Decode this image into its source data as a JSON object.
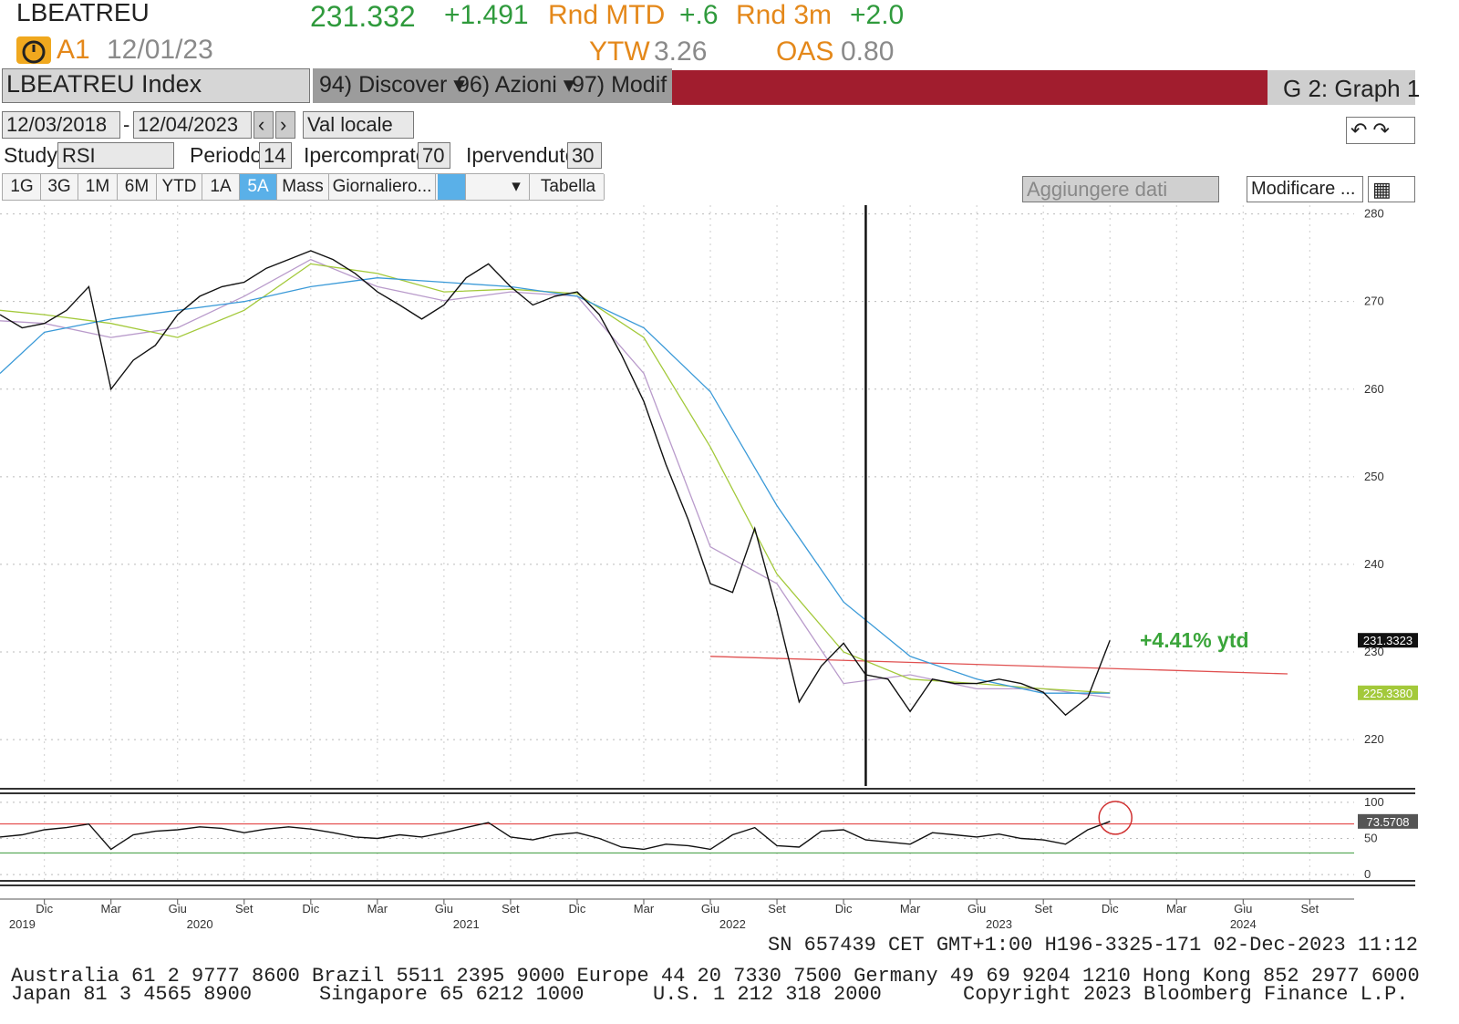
{
  "header": {
    "ticker": "LBEATREU",
    "price": "231.332",
    "change": "+1.491",
    "rnd_mtd_label": "Rnd MTD",
    "rnd_mtd": "+.6",
    "rnd_3m_label": "Rnd 3m",
    "rnd_3m": "+2.0",
    "rating": "A1",
    "date": "12/01/23",
    "ytw_label": "YTW",
    "ytw": "3.26",
    "oas_label": "OAS",
    "oas": "0.80"
  },
  "toolbar": {
    "security": "LBEATREU Index",
    "menus": [
      "94) Discover",
      "96) Azioni",
      "97) Modif"
    ],
    "graph": "G 2: Graph 1",
    "start_date": "12/03/2018",
    "date_separator": "-",
    "end_date": "12/04/2023",
    "currency": "Val locale",
    "study_label": "Study",
    "study": "RSI",
    "period_label": "Periodo",
    "period": "14",
    "overbought_label": "Ipercomprato",
    "oversold_label": "Ipervenduto",
    "ranges": [
      "1G",
      "3G",
      "1M",
      "6M",
      "YTD",
      "1A",
      "5A",
      "Mass"
    ],
    "frequency": "Giornaliero...",
    "table": "Tabella",
    "add_data": "Aggiungere dati",
    "edit": "Modificare ..."
  },
  "chart_data": [
    {
      "type": "line",
      "xlim": [
        "2019-10",
        "2024-11"
      ],
      "xticks": [
        {
          "value": "2019-12",
          "label": "Dic"
        },
        {
          "value": "2020-03",
          "label": "Mar"
        },
        {
          "value": "2020-06",
          "label": "Giu"
        },
        {
          "value": "2020-09",
          "label": "Set"
        },
        {
          "value": "2020-12",
          "label": "Dic"
        },
        {
          "value": "2021-03",
          "label": "Mar"
        },
        {
          "value": "2021-06",
          "label": "Giu"
        },
        {
          "value": "2021-09",
          "label": "Set"
        },
        {
          "value": "2021-12",
          "label": "Dic"
        },
        {
          "value": "2022-03",
          "label": "Mar"
        },
        {
          "value": "2022-06",
          "label": "Giu"
        },
        {
          "value": "2022-09",
          "label": "Set"
        },
        {
          "value": "2022-12",
          "label": "Dic"
        },
        {
          "value": "2023-03",
          "label": "Mar"
        },
        {
          "value": "2023-06",
          "label": "Giu"
        },
        {
          "value": "2023-09",
          "label": "Set"
        },
        {
          "value": "2023-12",
          "label": "Dic"
        },
        {
          "value": "2024-03",
          "label": "Mar"
        },
        {
          "value": "2024-06",
          "label": "Giu"
        },
        {
          "value": "2024-09",
          "label": "Set"
        }
      ],
      "year_labels": [
        {
          "value": "2019-11",
          "label": "2019"
        },
        {
          "value": "2020-07",
          "label": "2020"
        },
        {
          "value": "2021-07",
          "label": "2021"
        },
        {
          "value": "2022-07",
          "label": "2022"
        },
        {
          "value": "2023-07",
          "label": "2023"
        },
        {
          "value": "2024-06",
          "label": "2024"
        }
      ],
      "ylim": [
        214.7,
        281
      ],
      "yticks": [
        220,
        230,
        240,
        250,
        260,
        270,
        280
      ],
      "grid": true,
      "x": [
        "2019-10",
        "2019-11",
        "2019-12",
        "2020-01",
        "2020-02",
        "2020-03",
        "2020-04",
        "2020-05",
        "2020-06",
        "2020-07",
        "2020-08",
        "2020-09",
        "2020-10",
        "2020-11",
        "2020-12",
        "2021-01",
        "2021-02",
        "2021-03",
        "2021-04",
        "2021-05",
        "2021-06",
        "2021-07",
        "2021-08",
        "2021-09",
        "2021-10",
        "2021-11",
        "2021-12",
        "2022-01",
        "2022-02",
        "2022-03",
        "2022-04",
        "2022-05",
        "2022-06",
        "2022-07",
        "2022-08",
        "2022-09",
        "2022-10",
        "2022-11",
        "2022-12",
        "2023-01",
        "2023-02",
        "2023-03",
        "2023-04",
        "2023-05",
        "2023-06",
        "2023-07",
        "2023-08",
        "2023-09",
        "2023-10",
        "2023-11",
        "2023-12"
      ],
      "series": [
        {
          "color": "#111111",
          "last_value_box": true,
          "values": [
            268.5,
            267,
            267.5,
            269,
            271.7,
            260,
            263.3,
            265,
            268.5,
            270.6,
            271.7,
            272.2,
            273.8,
            274.8,
            275.8,
            274.8,
            273.2,
            271.1,
            269.6,
            268,
            269.6,
            272.7,
            274.3,
            271.7,
            269.6,
            270.6,
            271.1,
            268.5,
            263.9,
            258.6,
            251.4,
            245.1,
            237.8,
            236.8,
            244.1,
            234.7,
            224.3,
            228.4,
            231,
            227.4,
            226.9,
            223.2,
            226.9,
            226.4,
            226.4,
            226.9,
            226.4,
            225.4,
            222.8,
            224.8,
            231.3323
          ]
        },
        {
          "color": "#3b9ad8",
          "x": [
            "2019-10",
            "2019-12",
            "2020-03",
            "2020-06",
            "2020-09",
            "2020-12",
            "2021-03",
            "2021-06",
            "2021-09",
            "2021-12",
            "2022-03",
            "2022-06",
            "2022-09",
            "2022-12",
            "2023-03",
            "2023-06",
            "2023-09",
            "2023-12"
          ],
          "values": [
            261.8,
            266.5,
            268,
            269,
            270,
            271.7,
            272.7,
            272.2,
            271.7,
            270.6,
            267,
            259.7,
            246.7,
            235.7,
            229.5,
            226.9,
            225.3,
            225.3
          ]
        },
        {
          "color": "#a3c93a",
          "x": [
            "2019-10",
            "2019-12",
            "2020-03",
            "2020-06",
            "2020-09",
            "2020-12",
            "2021-03",
            "2021-06",
            "2021-09",
            "2021-12",
            "2022-03",
            "2022-06",
            "2022-09",
            "2022-12",
            "2023-03",
            "2023-06",
            "2023-09",
            "2023-12"
          ],
          "values": [
            269,
            268.5,
            267.5,
            265.9,
            269,
            274.3,
            273.2,
            271.1,
            271.4,
            270.9,
            265.9,
            253.4,
            238.9,
            230,
            226.9,
            226.4,
            225.8,
            225.338
          ],
          "value_labels": [
            null,
            null,
            null,
            null,
            null,
            null,
            null,
            null,
            null,
            null,
            null,
            null,
            null,
            null,
            null,
            null,
            null,
            "225.3380"
          ]
        },
        {
          "color": "#b99bcb",
          "x": [
            "2019-10",
            "2019-12",
            "2020-03",
            "2020-06",
            "2020-09",
            "2020-12",
            "2021-03",
            "2021-06",
            "2021-09",
            "2021-12",
            "2022-03",
            "2022-06",
            "2022-09",
            "2022-12",
            "2023-03",
            "2023-06",
            "2023-09",
            "2023-12"
          ],
          "values": [
            267.8,
            267.5,
            265.9,
            267,
            270.6,
            274.8,
            271.7,
            270.1,
            271.1,
            270.6,
            261.8,
            242,
            237.8,
            226.4,
            227.4,
            225.8,
            225.8,
            224.8
          ]
        }
      ],
      "trendline": {
        "color": "#e05050",
        "x": [
          "2022-06",
          "2024-08"
        ],
        "values": [
          229.5,
          227.5
        ]
      },
      "vertical_line": "2023-01",
      "annotation": "+4.41% ytd"
    },
    {
      "type": "line",
      "xlim": [
        "2019-10",
        "2024-11"
      ],
      "ylim": [
        -7.5,
        110
      ],
      "yticks": [
        0,
        50,
        100
      ],
      "grid": true,
      "overbought": 70,
      "overbought_color": "#e03030",
      "oversold": 30,
      "oversold_color": "#3a9a3a",
      "x": [
        "2019-10",
        "2019-11",
        "2019-12",
        "2020-01",
        "2020-02",
        "2020-03",
        "2020-04",
        "2020-05",
        "2020-06",
        "2020-07",
        "2020-08",
        "2020-09",
        "2020-10",
        "2020-11",
        "2020-12",
        "2021-01",
        "2021-02",
        "2021-03",
        "2021-04",
        "2021-05",
        "2021-06",
        "2021-07",
        "2021-08",
        "2021-09",
        "2021-10",
        "2021-11",
        "2021-12",
        "2022-01",
        "2022-02",
        "2022-03",
        "2022-04",
        "2022-05",
        "2022-06",
        "2022-07",
        "2022-08",
        "2022-09",
        "2022-10",
        "2022-11",
        "2022-12",
        "2023-01",
        "2023-02",
        "2023-03",
        "2023-04",
        "2023-05",
        "2023-06",
        "2023-07",
        "2023-08",
        "2023-09",
        "2023-10",
        "2023-11",
        "2023-12"
      ],
      "series": [
        {
          "color": "#111111",
          "last_value_box": true,
          "values": [
            52,
            55,
            62,
            65,
            70,
            35,
            55,
            60,
            62,
            66,
            64,
            58,
            63,
            66,
            63,
            58,
            52,
            50,
            55,
            52,
            58,
            65,
            72,
            52,
            48,
            55,
            58,
            50,
            38,
            35,
            42,
            40,
            35,
            55,
            65,
            40,
            38,
            60,
            62,
            48,
            45,
            42,
            58,
            55,
            52,
            56,
            50,
            48,
            42,
            62,
            73.5708
          ]
        }
      ]
    }
  ],
  "footer": {
    "session": "SN 657439 CET",
    "timezone": "GMT+1:00",
    "terminal": "H196-3325-171",
    "timestamp": "02-Dec-2023 11:12",
    "contacts_1": "Australia 61 2 9777 8600 Brazil 5511 2395 9000 Europe 44 20 7330 7500 Germany 49 69 9204 1210 Hong Kong 852 2977 6000",
    "contacts_2": [
      "Japan 81 3 4565 8900",
      "Singapore 65 6212 1000",
      "U.S. 1 212 318 2000",
      "Copyright 2023 Bloomberg Finance L.P."
    ]
  }
}
